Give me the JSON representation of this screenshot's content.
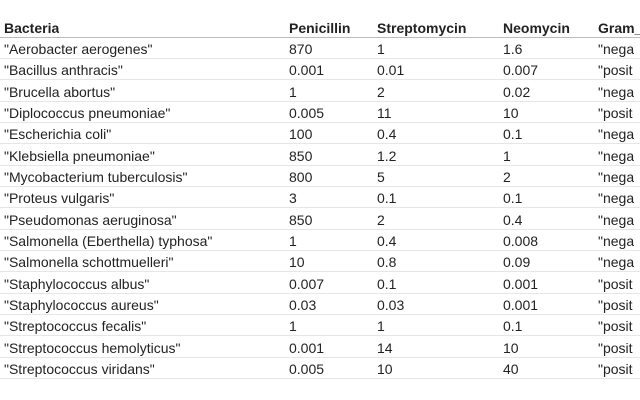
{
  "table": {
    "header": [
      "Bacteria",
      "Penicillin",
      "Streptomycin",
      "Neomycin",
      "Gram_"
    ],
    "rows": [
      [
        "\"Aerobacter aerogenes\"",
        870,
        1,
        1.6,
        "\"nega"
      ],
      [
        "\"Bacillus anthracis\"",
        0.001,
        0.01,
        0.007,
        "\"posit"
      ],
      [
        "\"Brucella abortus\"",
        1,
        2,
        0.02,
        "\"nega"
      ],
      [
        "\"Diplococcus pneumoniae\"",
        0.005,
        11,
        10,
        "\"posit"
      ],
      [
        "\"Escherichia coli\"",
        100,
        0.4,
        0.1,
        "\"nega"
      ],
      [
        "\"Klebsiella pneumoniae\"",
        850,
        1.2,
        1,
        "\"nega"
      ],
      [
        "\"Mycobacterium tuberculosis\"",
        800,
        5,
        2,
        "\"nega"
      ],
      [
        "\"Proteus vulgaris\"",
        3,
        0.1,
        0.1,
        "\"nega"
      ],
      [
        "\"Pseudomonas aeruginosa\"",
        850,
        2,
        0.4,
        "\"nega"
      ],
      [
        "\"Salmonella (Eberthella) typhosa\"",
        1,
        0.4,
        0.008,
        "\"nega"
      ],
      [
        "\"Salmonella schottmuelleri\"",
        10,
        0.8,
        0.09,
        "\"nega"
      ],
      [
        "\"Staphylococcus albus\"",
        0.007,
        0.1,
        0.001,
        "\"posit"
      ],
      [
        "\"Staphylococcus aureus\"",
        0.03,
        0.03,
        0.001,
        "\"posit"
      ],
      [
        "\"Streptococcus fecalis\"",
        1,
        1,
        0.1,
        "\"posit"
      ],
      [
        "\"Streptococcus hemolyticus\"",
        0.001,
        14,
        10,
        "\"posit"
      ],
      [
        "\"Streptococcus viridans\"",
        0.005,
        10,
        40,
        "\"posit"
      ]
    ]
  }
}
